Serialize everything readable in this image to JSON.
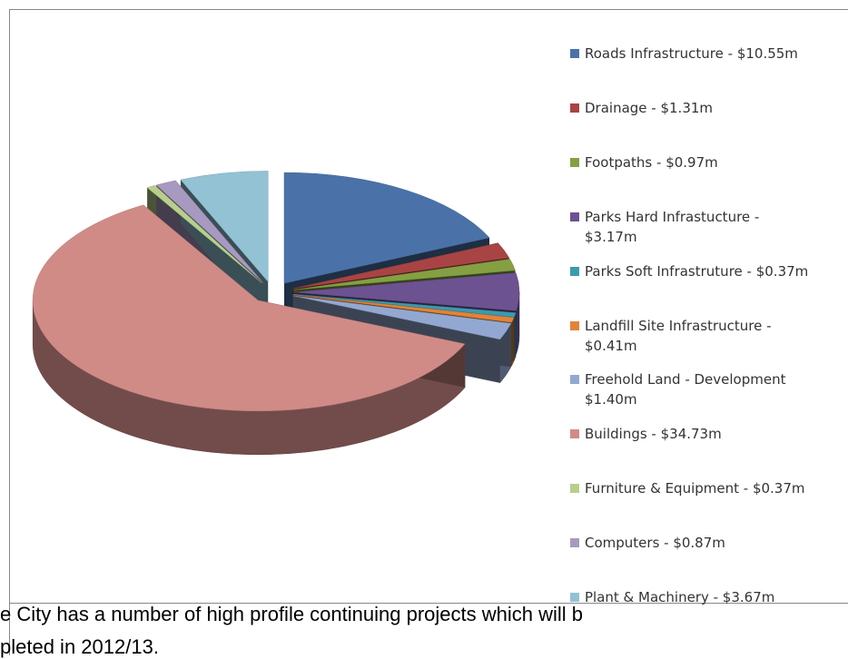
{
  "chart_data": {
    "type": "pie3d",
    "categories": [
      "Roads Infrastructure - $10.55m",
      "Drainage - $1.31m",
      "Footpaths - $0.97m",
      "Parks Hard Infrastucture -\n$3.17m",
      "Parks Soft Infrastruture - $0.37m",
      "Landfill Site Infrastructure -\n$0.41m",
      "Freehold Land - Development\n$1.40m",
      "Buildings - $34.73m",
      "Furniture & Equipment - $0.37m",
      "Computers - $0.87m",
      "Plant & Machinery - $3.67m"
    ],
    "values": [
      10.55,
      1.31,
      0.97,
      3.17,
      0.37,
      0.41,
      1.4,
      34.73,
      0.37,
      0.87,
      3.67
    ],
    "colors": [
      "#4a72a8",
      "#a84444",
      "#84a043",
      "#6c5291",
      "#3b9bb0",
      "#e0843a",
      "#93a8d0",
      "#d08b87",
      "#b8cf8c",
      "#a899c0",
      "#92c2d4"
    ],
    "legend": "right"
  },
  "body_text": [
    "e City has a number of high profile continuing projects which will b",
    "pleted in 2012/13."
  ]
}
